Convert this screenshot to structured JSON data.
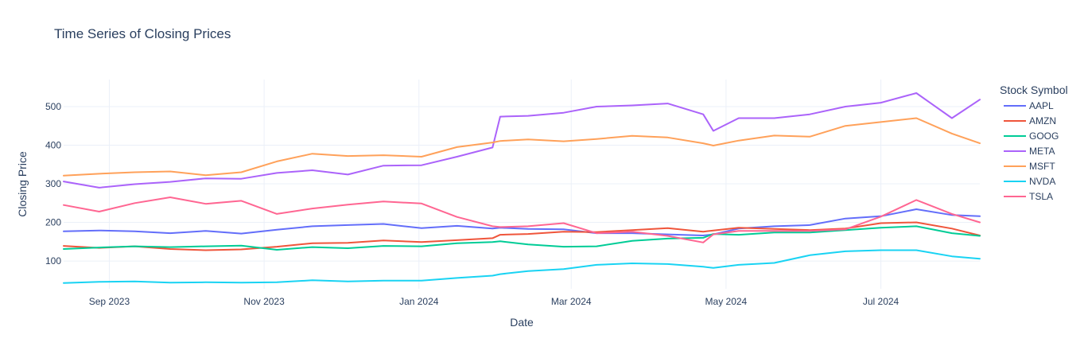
{
  "chart_data": {
    "type": "line",
    "title": "Time Series of Closing Prices",
    "xlabel": "Date",
    "ylabel": "Closing Price",
    "legend_title": "Stock Symbol",
    "legend_position": "right",
    "grid": true,
    "xlim": [
      "2023-08-14",
      "2024-08-09"
    ],
    "ylim": [
      28,
      570
    ],
    "x_ticks": [
      {
        "date": "2023-09-01",
        "label": "Sep 2023"
      },
      {
        "date": "2023-11-01",
        "label": "Nov 2023"
      },
      {
        "date": "2024-01-01",
        "label": "Jan 2024"
      },
      {
        "date": "2024-03-01",
        "label": "Mar 2024"
      },
      {
        "date": "2024-05-01",
        "label": "May 2024"
      },
      {
        "date": "2024-07-01",
        "label": "Jul 2024"
      }
    ],
    "y_ticks": [
      100,
      200,
      300,
      400,
      500
    ],
    "x": [
      "2023-08-14",
      "2023-08-28",
      "2023-09-11",
      "2023-09-25",
      "2023-10-09",
      "2023-10-23",
      "2023-11-06",
      "2023-11-20",
      "2023-12-04",
      "2023-12-18",
      "2024-01-02",
      "2024-01-16",
      "2024-01-30",
      "2024-02-02",
      "2024-02-13",
      "2024-02-27",
      "2024-03-11",
      "2024-03-25",
      "2024-04-08",
      "2024-04-22",
      "2024-04-26",
      "2024-05-06",
      "2024-05-20",
      "2024-06-03",
      "2024-06-17",
      "2024-07-01",
      "2024-07-15",
      "2024-07-29",
      "2024-08-09"
    ],
    "series": [
      {
        "name": "AAPL",
        "color": "#636efa",
        "values": [
          177,
          179,
          177,
          172,
          178,
          171,
          181,
          190,
          193,
          196,
          185,
          191,
          184,
          186,
          183,
          182,
          172,
          172,
          169,
          166,
          169,
          184,
          190,
          193,
          210,
          216,
          234,
          219,
          216
        ]
      },
      {
        "name": "AMZN",
        "color": "#EF553B",
        "values": [
          139,
          134,
          138,
          131,
          128,
          130,
          137,
          146,
          147,
          153,
          149,
          154,
          159,
          168,
          170,
          176,
          175,
          180,
          185,
          176,
          179,
          186,
          183,
          180,
          184,
          198,
          200,
          184,
          166
        ]
      },
      {
        "name": "GOOG",
        "color": "#00cc96",
        "values": [
          131,
          135,
          138,
          136,
          138,
          140,
          129,
          136,
          133,
          139,
          138,
          146,
          149,
          151,
          143,
          137,
          138,
          152,
          158,
          160,
          170,
          168,
          174,
          174,
          180,
          186,
          190,
          172,
          165
        ]
      },
      {
        "name": "META",
        "color": "#ab63fa",
        "values": [
          306,
          290,
          299,
          305,
          314,
          313,
          328,
          335,
          324,
          347,
          348,
          370,
          394,
          474,
          476,
          484,
          500,
          503,
          508,
          480,
          437,
          470,
          470,
          480,
          500,
          510,
          535,
          470,
          518
        ]
      },
      {
        "name": "MSFT",
        "color": "#FFA15A",
        "values": [
          321,
          326,
          330,
          332,
          322,
          330,
          358,
          378,
          372,
          374,
          370,
          395,
          407,
          411,
          415,
          410,
          416,
          424,
          420,
          405,
          399,
          412,
          425,
          422,
          450,
          460,
          470,
          430,
          405
        ]
      },
      {
        "name": "TSLA",
        "color": "#FF6692",
        "values": [
          245,
          228,
          250,
          265,
          248,
          256,
          222,
          236,
          246,
          254,
          249,
          214,
          190,
          188,
          190,
          198,
          172,
          176,
          165,
          148,
          169,
          178,
          178,
          178,
          182,
          215,
          258,
          222,
          200
        ]
      },
      {
        "name": "NVDA",
        "color": "#19d3f3",
        "values": [
          43,
          46,
          47,
          44,
          45,
          44,
          45,
          50,
          47,
          49,
          49,
          56,
          62,
          66,
          74,
          79,
          90,
          94,
          92,
          85,
          82,
          90,
          95,
          115,
          125,
          128,
          128,
          112,
          106
        ]
      }
    ],
    "legend_order": [
      "AAPL",
      "AMZN",
      "GOOG",
      "META",
      "MSFT",
      "NVDA",
      "TSLA"
    ]
  }
}
